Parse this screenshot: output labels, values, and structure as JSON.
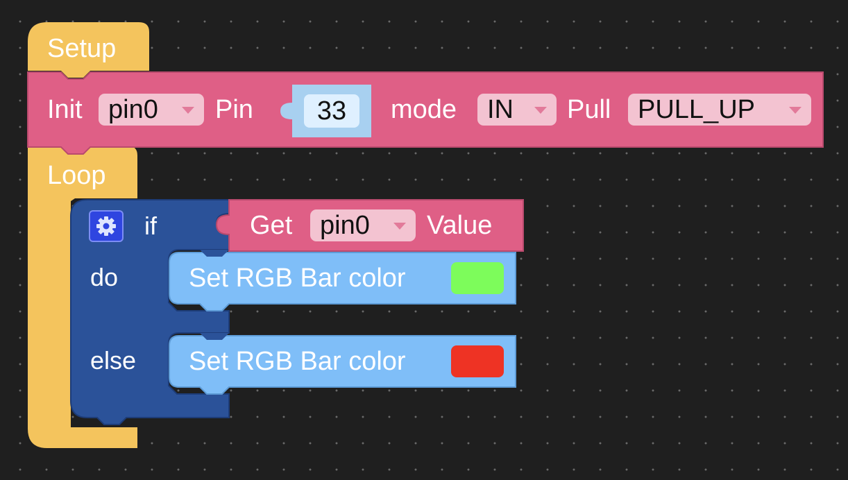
{
  "workspace": {
    "setup_label": "Setup",
    "loop_label": "Loop",
    "init_block": {
      "init_label": "Init",
      "pin_var": "pin0",
      "pin_label": "Pin",
      "pin_number": "33",
      "mode_label": "mode",
      "mode_value": "IN",
      "pull_label": "Pull",
      "pull_value": "PULL_UP"
    },
    "if_block": {
      "if_label": "if",
      "do_label": "do",
      "else_label": "else",
      "get_block": {
        "get_label": "Get",
        "pin_var": "pin0",
        "value_label": "Value"
      },
      "do_action": {
        "label": "Set RGB Bar color",
        "color": "#7dfc5b"
      },
      "else_action": {
        "label": "Set RGB Bar color",
        "color": "#ee3324"
      }
    }
  },
  "colors": {
    "background": "#1f1f1f",
    "setup_loop_block": "#f4c45d",
    "pin_block": "#df5f86",
    "if_block": "#2b5299",
    "rgb_block": "#7fbef8",
    "number_shadow": "#a8d0f0"
  },
  "icons": {
    "gear": "gear-icon",
    "dropdown": "chevron-down-icon"
  }
}
